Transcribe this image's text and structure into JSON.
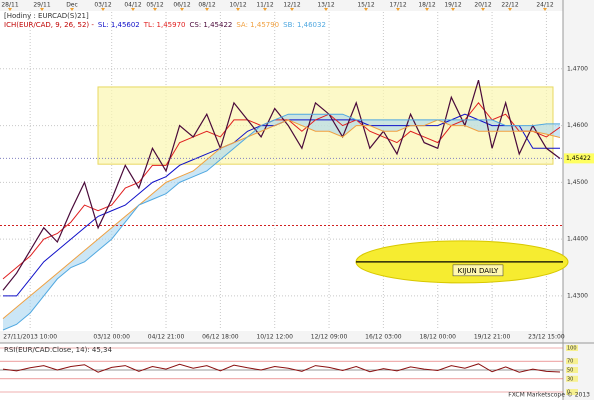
{
  "chart_data": [
    {
      "type": "line",
      "title": "[Hodiny : EURCAD(S)21]",
      "subtitle": "ICH(EUR/CAD, 9, 26, 52) -",
      "top_labels": [
        "28/11",
        "29/11",
        "Dec",
        "03/12",
        "04/12",
        "05/12",
        "06/12",
        "08/12",
        "10/12",
        "11/12",
        "12/12",
        "13/12",
        "15/12",
        "17/12",
        "18/12",
        "19/12",
        "20/12",
        "22/12",
        "24/12"
      ],
      "categories": [
        null,
        null,
        "27/11/2013 10:00",
        null,
        null,
        null,
        null,
        null,
        "03/12 00:00",
        null,
        null,
        null,
        "04/12 21:00",
        null,
        null,
        null,
        "06/12 18:00",
        null,
        null,
        null,
        "10/12 12:00",
        null,
        null,
        null,
        "12/12 09:00",
        null,
        null,
        null,
        "16/12 03:00",
        null,
        null,
        null,
        "18/12 00:00",
        null,
        null,
        null,
        "19/12 21:00",
        null,
        null,
        null,
        "23/12 15:00",
        null
      ],
      "series": [
        {
          "name": "SL: 1,45602",
          "color": "#1010c8",
          "values": [
            1.43,
            1.43,
            1.433,
            1.436,
            1.438,
            1.44,
            1.442,
            1.444,
            1.445,
            1.446,
            1.448,
            1.45,
            1.451,
            1.453,
            1.454,
            1.455,
            1.456,
            1.457,
            1.459,
            1.46,
            1.46,
            1.461,
            1.461,
            1.461,
            1.461,
            1.461,
            1.461,
            1.46,
            1.46,
            1.46,
            1.46,
            1.46,
            1.46,
            1.461,
            1.462,
            1.461,
            1.46,
            1.46,
            1.46,
            1.456,
            1.456,
            1.456
          ]
        },
        {
          "name": "TL: 1,45970",
          "color": "#e02020",
          "values": [
            1.433,
            1.435,
            1.437,
            1.44,
            1.441,
            1.443,
            1.446,
            1.445,
            1.446,
            1.449,
            1.45,
            1.453,
            1.453,
            1.457,
            1.458,
            1.459,
            1.458,
            1.461,
            1.461,
            1.46,
            1.461,
            1.461,
            1.459,
            1.461,
            1.462,
            1.46,
            1.461,
            1.459,
            1.458,
            1.457,
            1.459,
            1.458,
            1.457,
            1.46,
            1.461,
            1.464,
            1.461,
            1.462,
            1.459,
            1.459,
            1.458,
            1.4597
          ]
        },
        {
          "name": "CS: 1,45422",
          "color": "#4a0a3a",
          "values": [
            1.431,
            1.434,
            1.438,
            1.442,
            1.4395,
            1.445,
            1.45,
            1.442,
            1.447,
            1.453,
            1.449,
            1.456,
            1.452,
            1.46,
            1.458,
            1.462,
            1.456,
            1.464,
            1.461,
            1.458,
            1.463,
            1.46,
            1.456,
            1.464,
            1.462,
            1.458,
            1.464,
            1.456,
            1.459,
            1.455,
            1.462,
            1.457,
            1.456,
            1.465,
            1.46,
            1.468,
            1.456,
            1.464,
            1.455,
            1.46,
            1.456,
            1.4542
          ]
        },
        {
          "name": "SA: 1,45790",
          "color": "#f0a040",
          "values": [
            1.426,
            1.428,
            1.43,
            1.432,
            1.434,
            1.436,
            1.438,
            1.44,
            1.442,
            1.444,
            1.446,
            1.448,
            1.45,
            1.451,
            1.452,
            1.454,
            1.456,
            1.457,
            1.458,
            1.459,
            1.46,
            1.461,
            1.46,
            1.459,
            1.459,
            1.458,
            1.46,
            1.46,
            1.459,
            1.459,
            1.46,
            1.46,
            1.461,
            1.46,
            1.46,
            1.459,
            1.459,
            1.459,
            1.459,
            1.459,
            1.4585,
            1.4579
          ]
        },
        {
          "name": "SB: 1,46032",
          "color": "#50a8e0",
          "values": [
            1.424,
            1.425,
            1.427,
            1.43,
            1.433,
            1.435,
            1.436,
            1.438,
            1.44,
            1.443,
            1.446,
            1.447,
            1.448,
            1.45,
            1.451,
            1.452,
            1.454,
            1.456,
            1.458,
            1.46,
            1.461,
            1.462,
            1.462,
            1.462,
            1.462,
            1.462,
            1.461,
            1.461,
            1.461,
            1.461,
            1.461,
            1.461,
            1.461,
            1.461,
            1.461,
            1.461,
            1.461,
            1.46,
            1.46,
            1.46,
            1.4603,
            1.4603
          ]
        }
      ],
      "ylim": [
        1.424,
        1.48
      ],
      "yticks": [
        {
          "value": 1.43,
          "label": "1,4300"
        },
        {
          "value": 1.44,
          "label": "1,4400"
        },
        {
          "value": 1.45,
          "label": "1,4500"
        },
        {
          "value": 1.46,
          "label": "1,4600"
        },
        {
          "value": 1.47,
          "label": "1,4700"
        }
      ],
      "last_price": {
        "value": 1.45422,
        "label": "1,45422"
      },
      "range_box": [
        1.4532,
        1.4668
      ],
      "support_line": 1.4424,
      "kijun_daily": 1.436,
      "annotation": "KIJUN DAILY",
      "grid": true
    },
    {
      "type": "line",
      "title": "RSI(EUR/CAD.Close, 14): 45,34",
      "series": [
        {
          "color": "#8a1010",
          "values": [
            52,
            48,
            55,
            60,
            50,
            58,
            62,
            45,
            56,
            60,
            47,
            58,
            52,
            63,
            54,
            60,
            48,
            61,
            55,
            50,
            58,
            54,
            47,
            60,
            56,
            49,
            58,
            46,
            53,
            48,
            57,
            52,
            49,
            60,
            54,
            64,
            46,
            57,
            45,
            52,
            47,
            45.34
          ]
        }
      ],
      "ylim": [
        0,
        100
      ],
      "yticks": [
        0,
        30,
        50,
        70,
        100
      ],
      "footer": "FXCM Marketscope © 2013"
    }
  ]
}
